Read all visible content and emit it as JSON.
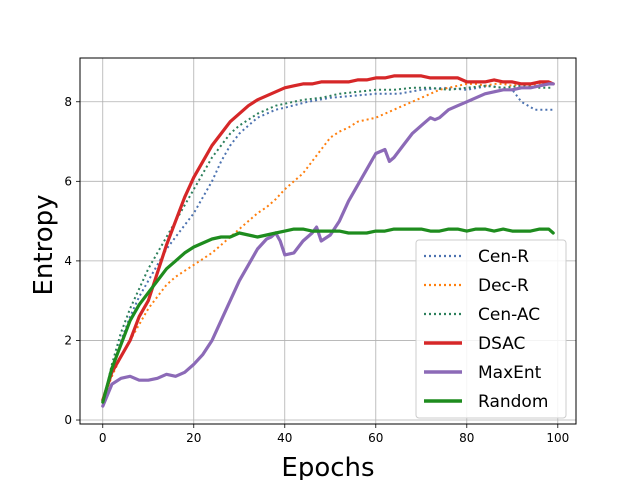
{
  "chart_data": {
    "type": "line",
    "title": "",
    "xlabel": "Epochs",
    "ylabel": "Entropy",
    "xlim": [
      -5,
      104
    ],
    "ylim": [
      -0.1,
      9.1
    ],
    "xticks": [
      0,
      20,
      40,
      60,
      80,
      100
    ],
    "yticks": [
      0,
      2,
      4,
      6,
      8
    ],
    "grid": true,
    "legend_position": "lower-right",
    "series": [
      {
        "name": "Cen-R",
        "color": "#4c72b0",
        "style": "dotted",
        "x": [
          0,
          2,
          4,
          6,
          8,
          10,
          12,
          14,
          16,
          18,
          20,
          22,
          24,
          26,
          28,
          30,
          32,
          34,
          36,
          38,
          40,
          45,
          50,
          55,
          60,
          65,
          70,
          75,
          80,
          85,
          90,
          92,
          95,
          99
        ],
        "y": [
          0.4,
          1.2,
          2.0,
          2.6,
          3.1,
          3.5,
          3.9,
          4.3,
          4.6,
          4.9,
          5.2,
          5.6,
          6.0,
          6.5,
          6.9,
          7.2,
          7.4,
          7.6,
          7.7,
          7.8,
          7.85,
          8.0,
          8.1,
          8.15,
          8.2,
          8.2,
          8.3,
          8.35,
          8.3,
          8.4,
          8.3,
          8.0,
          7.8,
          7.8
        ]
      },
      {
        "name": "Dec-R",
        "color": "#ff7f0e",
        "style": "dotted",
        "x": [
          0,
          2,
          4,
          6,
          8,
          10,
          12,
          14,
          16,
          18,
          20,
          22,
          24,
          26,
          28,
          30,
          32,
          34,
          36,
          38,
          40,
          42,
          44,
          46,
          48,
          50,
          52,
          54,
          56,
          58,
          60,
          62,
          64,
          66,
          68,
          70,
          72,
          74,
          76,
          78,
          80,
          82,
          84,
          86,
          88,
          90,
          92,
          94,
          96,
          98,
          99
        ],
        "y": [
          0.5,
          1.1,
          1.6,
          2.0,
          2.4,
          2.8,
          3.1,
          3.4,
          3.6,
          3.75,
          3.9,
          4.05,
          4.2,
          4.4,
          4.6,
          4.8,
          5.0,
          5.2,
          5.35,
          5.55,
          5.8,
          6.0,
          6.2,
          6.5,
          6.8,
          7.1,
          7.25,
          7.35,
          7.5,
          7.55,
          7.6,
          7.7,
          7.8,
          7.9,
          8.0,
          8.1,
          8.2,
          8.3,
          8.35,
          8.4,
          8.45,
          8.45,
          8.4,
          8.45,
          8.45,
          8.4,
          8.45,
          8.4,
          8.45,
          8.45,
          8.45
        ]
      },
      {
        "name": "Cen-AC",
        "color": "#2c7f5c",
        "style": "dotted",
        "x": [
          0,
          2,
          4,
          6,
          8,
          10,
          12,
          14,
          16,
          18,
          20,
          22,
          24,
          26,
          28,
          30,
          32,
          34,
          36,
          38,
          40,
          44,
          48,
          52,
          56,
          60,
          64,
          68,
          72,
          76,
          80,
          84,
          88,
          92,
          96,
          99
        ],
        "y": [
          0.4,
          1.4,
          2.2,
          2.8,
          3.3,
          3.8,
          4.2,
          4.6,
          5.0,
          5.4,
          5.8,
          6.2,
          6.6,
          6.9,
          7.2,
          7.4,
          7.55,
          7.7,
          7.8,
          7.9,
          7.95,
          8.05,
          8.1,
          8.2,
          8.25,
          8.3,
          8.3,
          8.35,
          8.35,
          8.3,
          8.35,
          8.4,
          8.35,
          8.4,
          8.35,
          8.35
        ]
      },
      {
        "name": "DSAC",
        "color": "#d62728",
        "style": "solid",
        "x": [
          0,
          2,
          4,
          6,
          8,
          10,
          12,
          14,
          16,
          18,
          20,
          22,
          24,
          26,
          28,
          30,
          32,
          34,
          36,
          38,
          40,
          42,
          44,
          46,
          48,
          50,
          52,
          54,
          56,
          58,
          60,
          62,
          64,
          66,
          68,
          70,
          72,
          74,
          76,
          78,
          80,
          82,
          84,
          86,
          88,
          90,
          92,
          94,
          96,
          98,
          99
        ],
        "y": [
          0.5,
          1.2,
          1.6,
          2.0,
          2.6,
          3.0,
          3.7,
          4.4,
          5.0,
          5.6,
          6.1,
          6.5,
          6.9,
          7.2,
          7.5,
          7.7,
          7.9,
          8.05,
          8.15,
          8.25,
          8.35,
          8.4,
          8.45,
          8.45,
          8.5,
          8.5,
          8.5,
          8.5,
          8.55,
          8.55,
          8.6,
          8.6,
          8.65,
          8.65,
          8.65,
          8.65,
          8.6,
          8.6,
          8.6,
          8.6,
          8.5,
          8.5,
          8.5,
          8.55,
          8.5,
          8.5,
          8.45,
          8.45,
          8.5,
          8.5,
          8.45
        ]
      },
      {
        "name": "MaxEnt",
        "color": "#8c6ab7",
        "style": "solid",
        "x": [
          0,
          2,
          4,
          6,
          8,
          10,
          12,
          14,
          16,
          18,
          20,
          22,
          24,
          26,
          28,
          30,
          32,
          34,
          36,
          37,
          38,
          39,
          40,
          42,
          44,
          46,
          47,
          48,
          50,
          52,
          54,
          56,
          58,
          60,
          62,
          63,
          64,
          66,
          68,
          70,
          72,
          73,
          74,
          76,
          78,
          80,
          82,
          84,
          86,
          88,
          90,
          92,
          94,
          96,
          98,
          99
        ],
        "y": [
          0.35,
          0.9,
          1.05,
          1.1,
          1.0,
          1.0,
          1.05,
          1.15,
          1.1,
          1.2,
          1.4,
          1.65,
          2.0,
          2.5,
          3.0,
          3.5,
          3.9,
          4.3,
          4.55,
          4.6,
          4.7,
          4.5,
          4.15,
          4.2,
          4.5,
          4.7,
          4.85,
          4.5,
          4.65,
          5.0,
          5.5,
          5.9,
          6.3,
          6.7,
          6.8,
          6.5,
          6.6,
          6.9,
          7.2,
          7.4,
          7.6,
          7.55,
          7.6,
          7.8,
          7.9,
          8.0,
          8.1,
          8.2,
          8.25,
          8.3,
          8.3,
          8.35,
          8.35,
          8.4,
          8.45,
          8.45
        ]
      },
      {
        "name": "Random",
        "color": "#1e8c1e",
        "style": "solid",
        "x": [
          0,
          2,
          4,
          6,
          8,
          10,
          12,
          14,
          16,
          18,
          20,
          22,
          24,
          26,
          28,
          30,
          32,
          34,
          36,
          38,
          40,
          42,
          44,
          46,
          48,
          50,
          52,
          54,
          56,
          58,
          60,
          62,
          64,
          66,
          68,
          70,
          72,
          74,
          76,
          78,
          80,
          82,
          84,
          86,
          88,
          90,
          92,
          94,
          96,
          98,
          99
        ],
        "y": [
          0.45,
          1.3,
          1.9,
          2.5,
          2.9,
          3.2,
          3.5,
          3.8,
          4.0,
          4.2,
          4.35,
          4.45,
          4.55,
          4.6,
          4.6,
          4.7,
          4.65,
          4.6,
          4.65,
          4.7,
          4.75,
          4.8,
          4.8,
          4.75,
          4.75,
          4.75,
          4.75,
          4.7,
          4.7,
          4.7,
          4.75,
          4.75,
          4.8,
          4.8,
          4.8,
          4.8,
          4.75,
          4.75,
          4.8,
          4.8,
          4.75,
          4.8,
          4.8,
          4.75,
          4.8,
          4.75,
          4.75,
          4.75,
          4.8,
          4.8,
          4.7
        ]
      }
    ]
  }
}
